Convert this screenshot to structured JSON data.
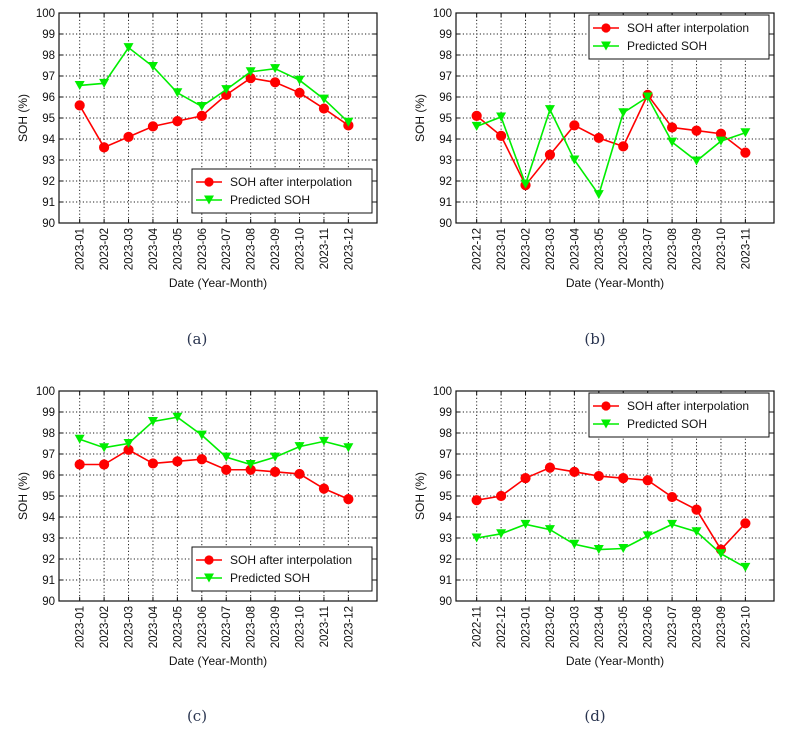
{
  "chart_data": [
    {
      "type": "line",
      "panel": "(a)",
      "caption": "(a)",
      "xlabel": "Date (Year-Month)",
      "ylabel": "SOH (%)",
      "ylim": [
        90,
        100
      ],
      "yticks": [
        "90",
        "91",
        "92",
        "93",
        "94",
        "95",
        "96",
        "97",
        "98",
        "99",
        "100"
      ],
      "grid": true,
      "legend_position": "bottom-right",
      "categories": [
        "2023-01",
        "2023-02",
        "2023-03",
        "2023-04",
        "2023-05",
        "2023-06",
        "2023-07",
        "2023-08",
        "2023-09",
        "2023-10",
        "2023-11",
        "2023-12"
      ],
      "series": [
        {
          "name": "SOH after interpolation",
          "color": "#ff0000",
          "marker": "circle",
          "values": [
            95.6,
            93.6,
            94.1,
            94.6,
            94.85,
            95.1,
            96.1,
            96.9,
            96.7,
            96.2,
            95.45,
            94.65
          ]
        },
        {
          "name": "Predicted SOH",
          "color": "#00ee00",
          "marker": "triangle-down",
          "values": [
            96.55,
            96.65,
            98.35,
            97.45,
            96.2,
            95.55,
            96.35,
            97.2,
            97.35,
            96.8,
            95.9,
            94.8
          ]
        }
      ]
    },
    {
      "type": "line",
      "panel": "(b)",
      "caption": "(b)",
      "xlabel": "Date (Year-Month)",
      "ylabel": "SOH (%)",
      "ylim": [
        90,
        100
      ],
      "yticks": [
        "90",
        "91",
        "92",
        "93",
        "94",
        "95",
        "96",
        "97",
        "98",
        "99",
        "100"
      ],
      "grid": true,
      "legend_position": "top-right",
      "categories": [
        "2022-12",
        "2023-01",
        "2023-02",
        "2023-03",
        "2023-04",
        "2023-05",
        "2023-06",
        "2023-07",
        "2023-08",
        "2023-09",
        "2023-10",
        "2023-11"
      ],
      "series": [
        {
          "name": "SOH after interpolation",
          "color": "#ff0000",
          "marker": "circle",
          "values": [
            95.1,
            94.15,
            91.8,
            93.25,
            94.65,
            94.05,
            93.65,
            96.1,
            94.55,
            94.4,
            94.25,
            93.35
          ]
        },
        {
          "name": "Predicted SOH",
          "color": "#00ee00",
          "marker": "triangle-down",
          "values": [
            94.6,
            95.05,
            91.85,
            95.4,
            93.0,
            91.35,
            95.25,
            96.0,
            93.85,
            92.95,
            93.9,
            94.3
          ]
        }
      ]
    },
    {
      "type": "line",
      "panel": "(c)",
      "caption": "(c)",
      "xlabel": "Date (Year-Month)",
      "ylabel": "SOH (%)",
      "ylim": [
        90,
        100
      ],
      "yticks": [
        "90",
        "91",
        "92",
        "93",
        "94",
        "95",
        "96",
        "97",
        "98",
        "99",
        "100"
      ],
      "grid": true,
      "legend_position": "bottom-right",
      "categories": [
        "2023-01",
        "2023-02",
        "2023-03",
        "2023-04",
        "2023-05",
        "2023-06",
        "2023-07",
        "2023-08",
        "2023-09",
        "2023-10",
        "2023-11",
        "2023-12"
      ],
      "series": [
        {
          "name": "SOH after interpolation",
          "color": "#ff0000",
          "marker": "circle",
          "values": [
            96.5,
            96.5,
            97.2,
            96.55,
            96.65,
            96.75,
            96.25,
            96.25,
            96.15,
            96.05,
            95.35,
            94.85
          ]
        },
        {
          "name": "Predicted SOH",
          "color": "#00ee00",
          "marker": "triangle-down",
          "values": [
            97.7,
            97.3,
            97.5,
            98.55,
            98.75,
            97.9,
            96.85,
            96.5,
            96.85,
            97.35,
            97.6,
            97.3
          ]
        }
      ]
    },
    {
      "type": "line",
      "panel": "(d)",
      "caption": "(d)",
      "xlabel": "Date (Year-Month)",
      "ylabel": "SOH (%)",
      "ylim": [
        90,
        100
      ],
      "yticks": [
        "90",
        "91",
        "92",
        "93",
        "94",
        "95",
        "96",
        "97",
        "98",
        "99",
        "100"
      ],
      "grid": true,
      "legend_position": "top-right",
      "categories": [
        "2022-11",
        "2022-12",
        "2023-01",
        "2023-02",
        "2023-03",
        "2023-04",
        "2023-05",
        "2023-06",
        "2023-07",
        "2023-08",
        "2023-09",
        "2023-10"
      ],
      "series": [
        {
          "name": "SOH after interpolation",
          "color": "#ff0000",
          "marker": "circle",
          "values": [
            94.8,
            95.0,
            95.85,
            96.35,
            96.15,
            95.95,
            95.85,
            95.75,
            94.95,
            94.35,
            92.45,
            93.7
          ]
        },
        {
          "name": "Predicted SOH",
          "color": "#00ee00",
          "marker": "triangle-down",
          "values": [
            93.0,
            93.2,
            93.65,
            93.4,
            92.7,
            92.45,
            92.5,
            93.1,
            93.65,
            93.3,
            92.25,
            91.6
          ]
        }
      ]
    }
  ]
}
